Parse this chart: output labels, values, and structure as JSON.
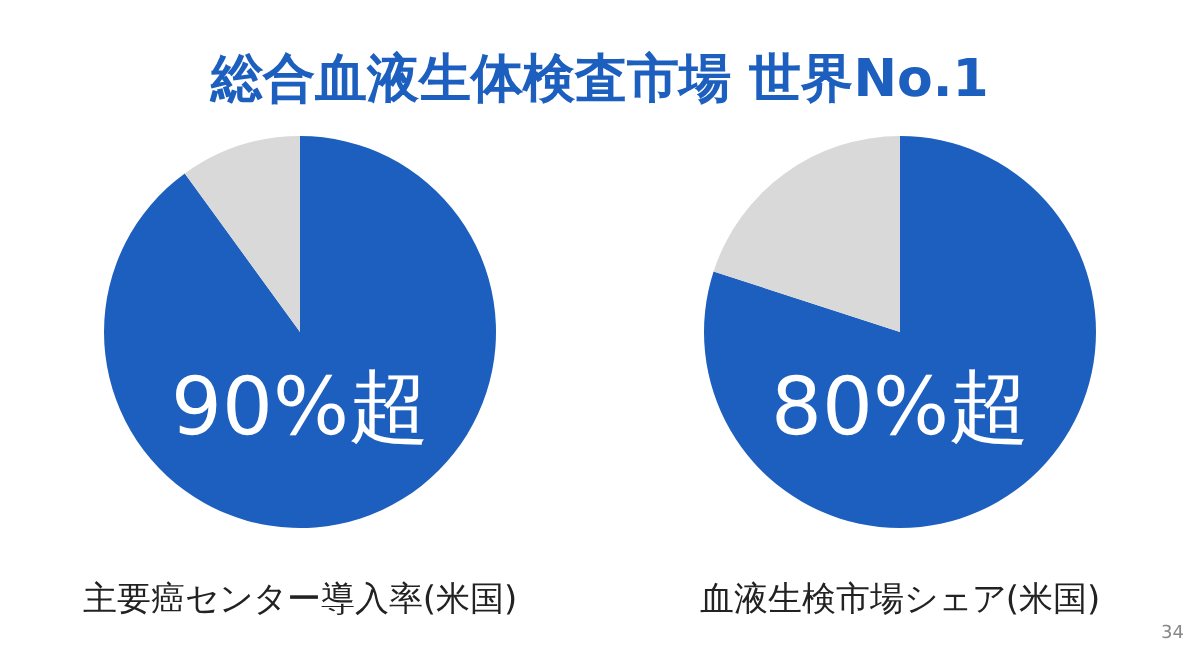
{
  "chart_data": [
    {
      "type": "pie",
      "title": "総合血液生体検査市場 世界No.1",
      "xlabel": "主要癌センター導入率(米国)",
      "categories": [
        null,
        null
      ],
      "values": [
        90,
        10
      ],
      "colors": [
        "#1c5fbf",
        "#d9d9d9"
      ],
      "value_labels": [
        "90%超",
        null
      ]
    },
    {
      "type": "pie",
      "xlabel": "血液生検市場シェア(米国)",
      "categories": [
        null,
        null
      ],
      "values": [
        80,
        20
      ],
      "colors": [
        "#1c5fbf",
        "#d9d9d9"
      ],
      "value_labels": [
        "80%超",
        null
      ],
      "annotations": [
        "34"
      ]
    }
  ]
}
